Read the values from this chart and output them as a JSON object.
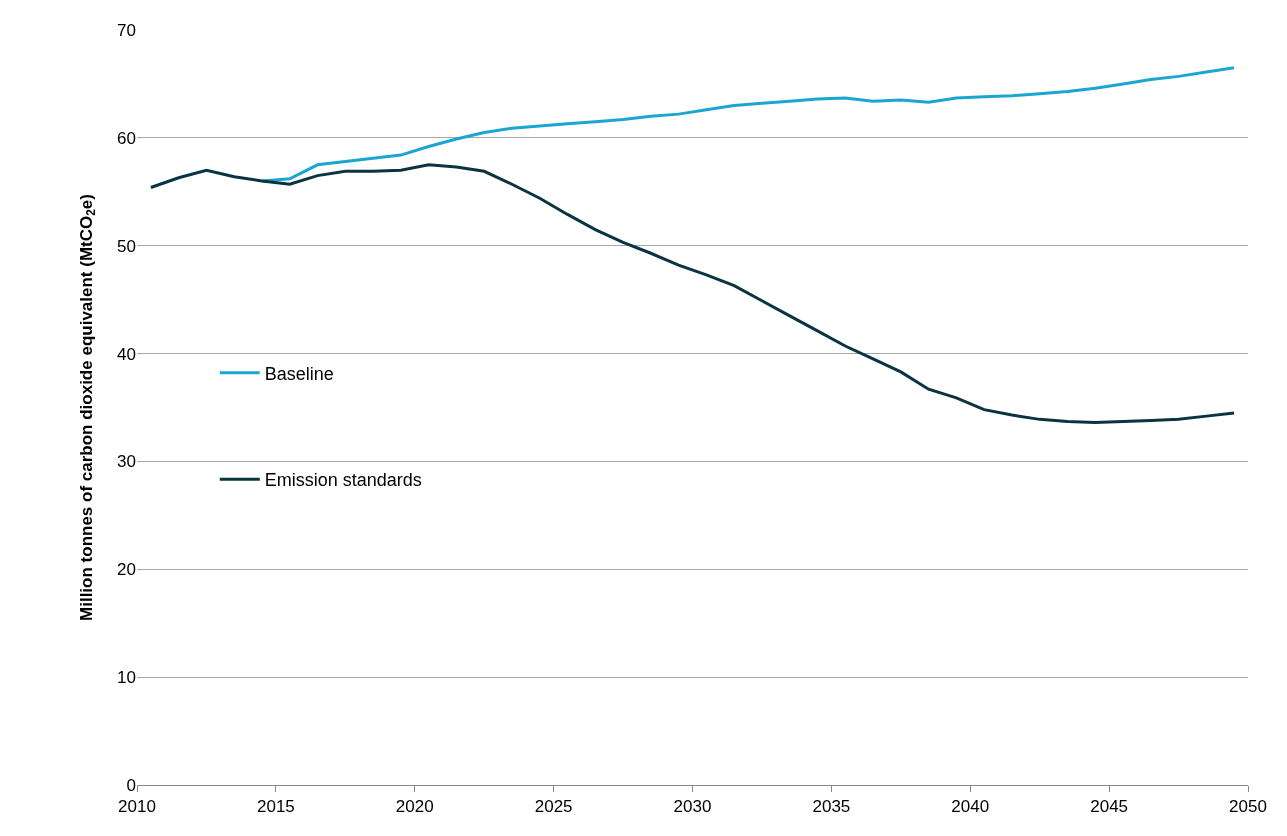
{
  "chart_data": {
    "type": "line",
    "ylabel": "Million tonnes of carbon dioxide equivalent (MtCO$_{2}$e)",
    "x": [
      2010.5,
      2011.5,
      2012.5,
      2013.5,
      2014.5,
      2015.5,
      2016.5,
      2017.5,
      2018.5,
      2019.5,
      2020.5,
      2021.5,
      2022.5,
      2023.5,
      2024.5,
      2025.5,
      2026.5,
      2027.5,
      2028.5,
      2029.5,
      2030.5,
      2031.5,
      2032.5,
      2033.5,
      2034.5,
      2035.5,
      2036.5,
      2037.5,
      2038.5,
      2039.5,
      2040.5,
      2041.5,
      2042.5,
      2043.5,
      2044.5,
      2045.5,
      2046.5,
      2047.5,
      2048.5,
      2049.5
    ],
    "series": [
      {
        "name": "Baseline",
        "color": "#1ba6d2",
        "values": [
          null,
          null,
          null,
          null,
          56.0,
          56.2,
          57.5,
          57.8,
          58.1,
          58.4,
          59.2,
          59.9,
          60.5,
          60.9,
          61.1,
          61.3,
          61.5,
          61.7,
          62.0,
          62.2,
          62.6,
          63.0,
          63.2,
          63.4,
          63.6,
          63.7,
          63.4,
          63.5,
          63.3,
          63.7,
          63.8,
          63.9,
          64.1,
          64.3,
          64.6,
          65.0,
          65.4,
          65.7,
          66.1,
          66.5
        ]
      },
      {
        "name": "Emission standards",
        "color": "#0b3442",
        "values": [
          55.4,
          56.3,
          57.0,
          56.4,
          56.0,
          55.7,
          56.5,
          56.9,
          56.9,
          57.0,
          57.5,
          57.3,
          56.9,
          55.7,
          54.4,
          52.9,
          51.5,
          50.3,
          49.3,
          48.2,
          47.3,
          46.3,
          44.9,
          43.5,
          42.1,
          40.7,
          39.5,
          38.3,
          36.7,
          35.9,
          34.8,
          34.3,
          33.9,
          33.7,
          33.6,
          33.7,
          33.8,
          33.9,
          34.2,
          34.5
        ]
      }
    ],
    "xlim": [
      2010,
      2050
    ],
    "xticks": [
      2010,
      2015,
      2020,
      2025,
      2030,
      2035,
      2040,
      2045,
      2050
    ],
    "ylim": [
      0,
      70
    ],
    "yticks": [
      0,
      10,
      20,
      30,
      40,
      50,
      60,
      70
    ],
    "grid": "y",
    "legend": "left",
    "marker": "none",
    "line_style": "solid"
  }
}
